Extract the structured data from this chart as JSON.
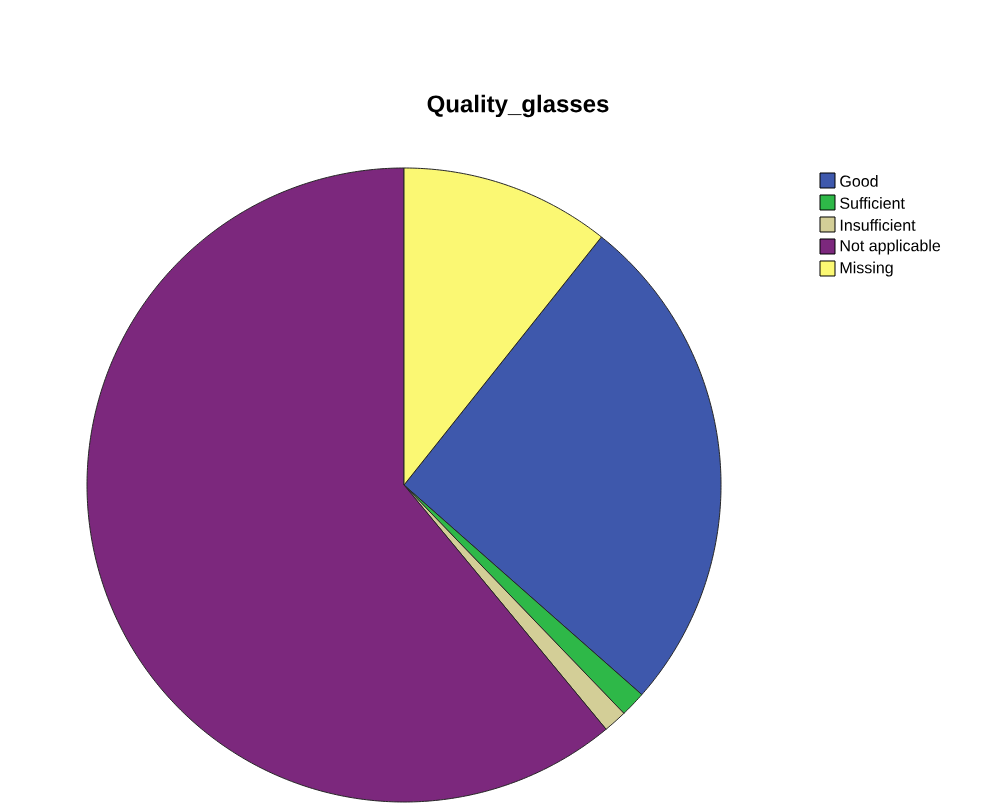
{
  "chart_data": {
    "type": "pie",
    "title": "Quality_glasses",
    "categories": [
      "Good",
      "Sufficient",
      "Insufficient",
      "Not applicable",
      "Missing"
    ],
    "values": [
      25.8,
      1.3,
      1.2,
      61.0,
      10.7
    ],
    "colors": [
      "#3e58ac",
      "#2eb848",
      "#d3ce97",
      "#7c287d",
      "#fbf873"
    ],
    "legend": "top right"
  }
}
